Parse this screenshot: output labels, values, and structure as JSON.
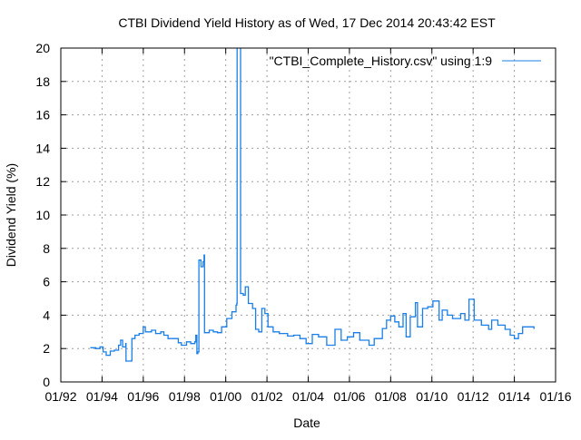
{
  "chart_data": {
    "type": "line",
    "title": "CTBI Dividend Yield History as of Wed, 17 Dec 2014 20:43:42 EST",
    "xlabel": "Date",
    "ylabel": "Dividend Yield (%)",
    "xlim": [
      1992,
      2016
    ],
    "ylim": [
      0,
      20
    ],
    "grid": true,
    "legend_position": "top-right",
    "x_ticks": [
      {
        "value": 1992,
        "label": "01/92"
      },
      {
        "value": 1994,
        "label": "01/94"
      },
      {
        "value": 1996,
        "label": "01/96"
      },
      {
        "value": 1998,
        "label": "01/98"
      },
      {
        "value": 2000,
        "label": "01/00"
      },
      {
        "value": 2002,
        "label": "01/02"
      },
      {
        "value": 2004,
        "label": "01/04"
      },
      {
        "value": 2006,
        "label": "01/06"
      },
      {
        "value": 2008,
        "label": "01/08"
      },
      {
        "value": 2010,
        "label": "01/10"
      },
      {
        "value": 2012,
        "label": "01/12"
      },
      {
        "value": 2014,
        "label": "01/14"
      },
      {
        "value": 2016,
        "label": "01/16"
      }
    ],
    "y_ticks": [
      {
        "value": 0,
        "label": "0"
      },
      {
        "value": 2,
        "label": "2"
      },
      {
        "value": 4,
        "label": "4"
      },
      {
        "value": 6,
        "label": "6"
      },
      {
        "value": 8,
        "label": "8"
      },
      {
        "value": 10,
        "label": "10"
      },
      {
        "value": 12,
        "label": "12"
      },
      {
        "value": 14,
        "label": "14"
      },
      {
        "value": 16,
        "label": "16"
      },
      {
        "value": 18,
        "label": "18"
      },
      {
        "value": 20,
        "label": "20"
      }
    ],
    "series": [
      {
        "name": "\"CTBI_Complete_History.csv\" using 1:9",
        "color": "#1a7fe8",
        "points": [
          [
            1993.45,
            2.05
          ],
          [
            1993.7,
            2.0
          ],
          [
            1993.9,
            2.1
          ],
          [
            1994.05,
            1.8
          ],
          [
            1994.2,
            1.6
          ],
          [
            1994.4,
            1.85
          ],
          [
            1994.6,
            1.9
          ],
          [
            1994.8,
            2.2
          ],
          [
            1994.9,
            2.5
          ],
          [
            1995.0,
            2.1
          ],
          [
            1995.15,
            2.3
          ],
          [
            1995.16,
            1.25
          ],
          [
            1995.44,
            1.3
          ],
          [
            1995.45,
            2.6
          ],
          [
            1995.6,
            2.8
          ],
          [
            1995.8,
            2.9
          ],
          [
            1996.0,
            3.3
          ],
          [
            1996.1,
            3.0
          ],
          [
            1996.4,
            3.1
          ],
          [
            1996.6,
            2.9
          ],
          [
            1996.85,
            3.0
          ],
          [
            1997.0,
            2.8
          ],
          [
            1997.2,
            2.6
          ],
          [
            1997.5,
            2.6
          ],
          [
            1997.7,
            2.35
          ],
          [
            1997.85,
            2.2
          ],
          [
            1998.1,
            2.4
          ],
          [
            1998.3,
            2.3
          ],
          [
            1998.5,
            2.4
          ],
          [
            1998.55,
            2.8
          ],
          [
            1998.6,
            1.7
          ],
          [
            1998.65,
            1.8
          ],
          [
            1998.7,
            7.3
          ],
          [
            1998.8,
            6.9
          ],
          [
            1998.9,
            7.2
          ],
          [
            1998.95,
            7.6
          ],
          [
            1998.97,
            2.95
          ],
          [
            1999.2,
            3.1
          ],
          [
            1999.4,
            3.0
          ],
          [
            1999.6,
            2.95
          ],
          [
            1999.8,
            3.3
          ],
          [
            2000.05,
            3.8
          ],
          [
            2000.3,
            4.2
          ],
          [
            2000.5,
            4.6
          ],
          [
            2000.54,
            4.7
          ],
          [
            2000.55,
            30
          ],
          [
            2000.71,
            30
          ],
          [
            2000.72,
            5.3
          ],
          [
            2000.85,
            5.2
          ],
          [
            2000.95,
            5.7
          ],
          [
            2001.1,
            4.7
          ],
          [
            2001.3,
            4.4
          ],
          [
            2001.45,
            3.15
          ],
          [
            2001.6,
            3.0
          ],
          [
            2001.75,
            4.4
          ],
          [
            2001.9,
            4.1
          ],
          [
            2002.05,
            3.3
          ],
          [
            2002.3,
            3.0
          ],
          [
            2002.6,
            2.9
          ],
          [
            2003.0,
            2.75
          ],
          [
            2003.3,
            2.8
          ],
          [
            2003.6,
            2.6
          ],
          [
            2003.9,
            2.3
          ],
          [
            2004.2,
            2.85
          ],
          [
            2004.5,
            2.7
          ],
          [
            2004.9,
            2.2
          ],
          [
            2005.3,
            3.15
          ],
          [
            2005.6,
            2.5
          ],
          [
            2005.9,
            2.7
          ],
          [
            2006.2,
            2.95
          ],
          [
            2006.5,
            2.5
          ],
          [
            2006.95,
            2.2
          ],
          [
            2007.2,
            2.6
          ],
          [
            2007.6,
            3.2
          ],
          [
            2007.8,
            3.7
          ],
          [
            2008.0,
            3.95
          ],
          [
            2008.2,
            3.6
          ],
          [
            2008.4,
            3.3
          ],
          [
            2008.6,
            4.1
          ],
          [
            2008.75,
            2.7
          ],
          [
            2008.95,
            3.9
          ],
          [
            2009.2,
            4.75
          ],
          [
            2009.3,
            3.3
          ],
          [
            2009.55,
            4.4
          ],
          [
            2009.8,
            4.5
          ],
          [
            2010.05,
            4.85
          ],
          [
            2010.35,
            3.7
          ],
          [
            2010.5,
            4.3
          ],
          [
            2010.75,
            4.0
          ],
          [
            2011.0,
            3.8
          ],
          [
            2011.4,
            4.1
          ],
          [
            2011.6,
            3.7
          ],
          [
            2011.8,
            4.95
          ],
          [
            2012.05,
            3.7
          ],
          [
            2012.4,
            3.4
          ],
          [
            2012.75,
            3.15
          ],
          [
            2012.9,
            3.7
          ],
          [
            2013.2,
            3.4
          ],
          [
            2013.55,
            3.15
          ],
          [
            2013.8,
            2.8
          ],
          [
            2014.0,
            2.6
          ],
          [
            2014.2,
            2.9
          ],
          [
            2014.4,
            3.3
          ],
          [
            2014.7,
            3.3
          ],
          [
            2014.95,
            3.2
          ]
        ]
      }
    ]
  }
}
